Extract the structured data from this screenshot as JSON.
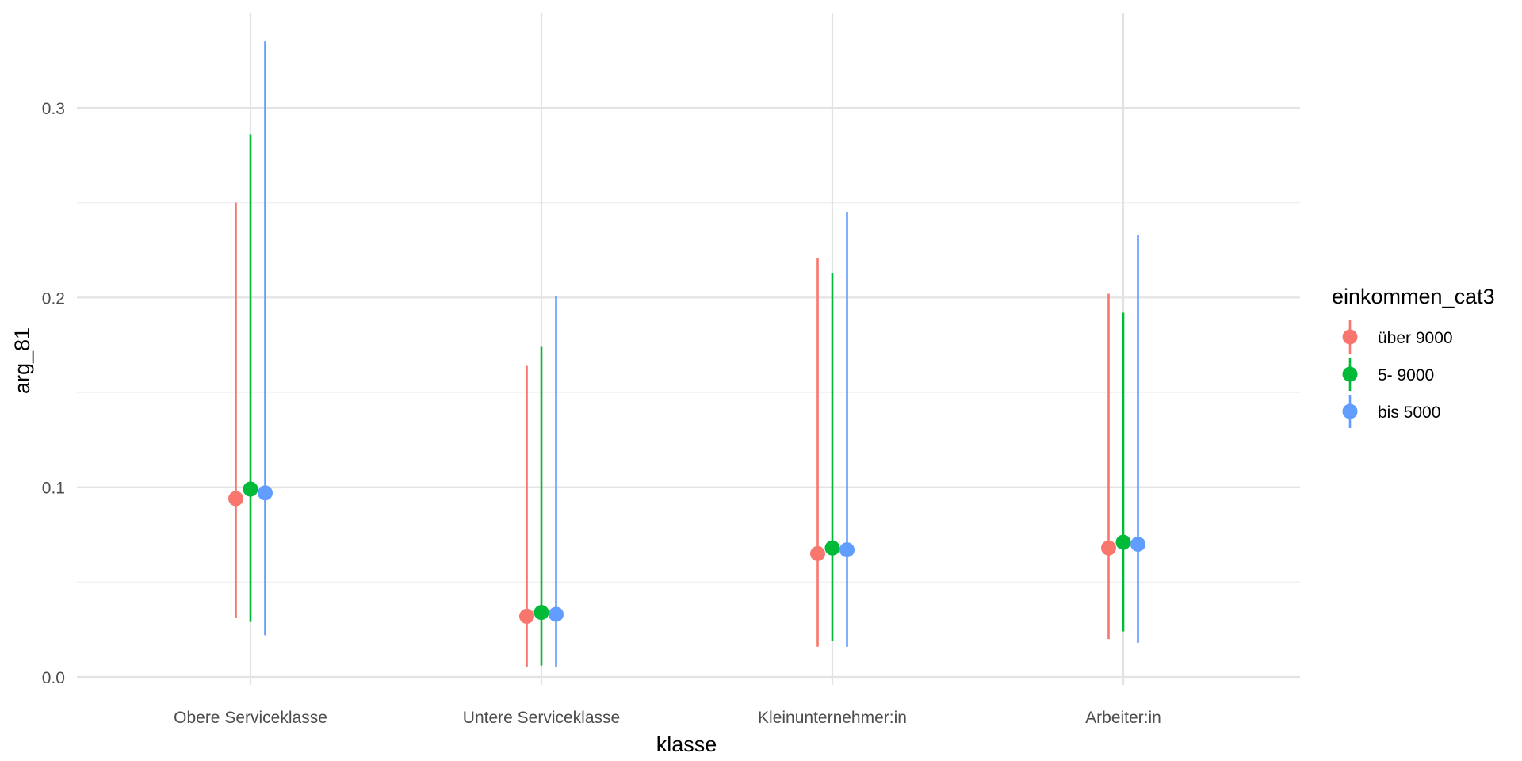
{
  "chart_data": {
    "type": "pointrange",
    "xlabel": "klasse",
    "ylabel": "arg_81",
    "categories": [
      "Obere Serviceklasse",
      "Untere Serviceklasse",
      "Kleinunternehmer:in",
      "Arbeiter:in"
    ],
    "ylim": [
      -0.005,
      0.35
    ],
    "yticks": [
      0.0,
      0.1,
      0.2,
      0.3
    ],
    "ytick_labels": [
      "0.0",
      "0.1",
      "0.2",
      "0.3"
    ],
    "grid": true,
    "legend": {
      "title": "einkommen_cat3",
      "position": "right"
    },
    "series": [
      {
        "name": "über 9000",
        "color": "#F8766D",
        "values": [
          0.094,
          0.032,
          0.065,
          0.068
        ],
        "lower": [
          0.031,
          0.005,
          0.016,
          0.02
        ],
        "upper": [
          0.25,
          0.164,
          0.221,
          0.202
        ]
      },
      {
        "name": "5- 9000",
        "color": "#00BA38",
        "values": [
          0.099,
          0.034,
          0.068,
          0.071
        ],
        "lower": [
          0.029,
          0.006,
          0.019,
          0.024
        ],
        "upper": [
          0.286,
          0.174,
          0.213,
          0.192
        ]
      },
      {
        "name": "bis 5000",
        "color": "#619CFF",
        "values": [
          0.097,
          0.033,
          0.067,
          0.07
        ],
        "lower": [
          0.022,
          0.005,
          0.016,
          0.018
        ],
        "upper": [
          0.335,
          0.201,
          0.245,
          0.233
        ]
      }
    ]
  }
}
